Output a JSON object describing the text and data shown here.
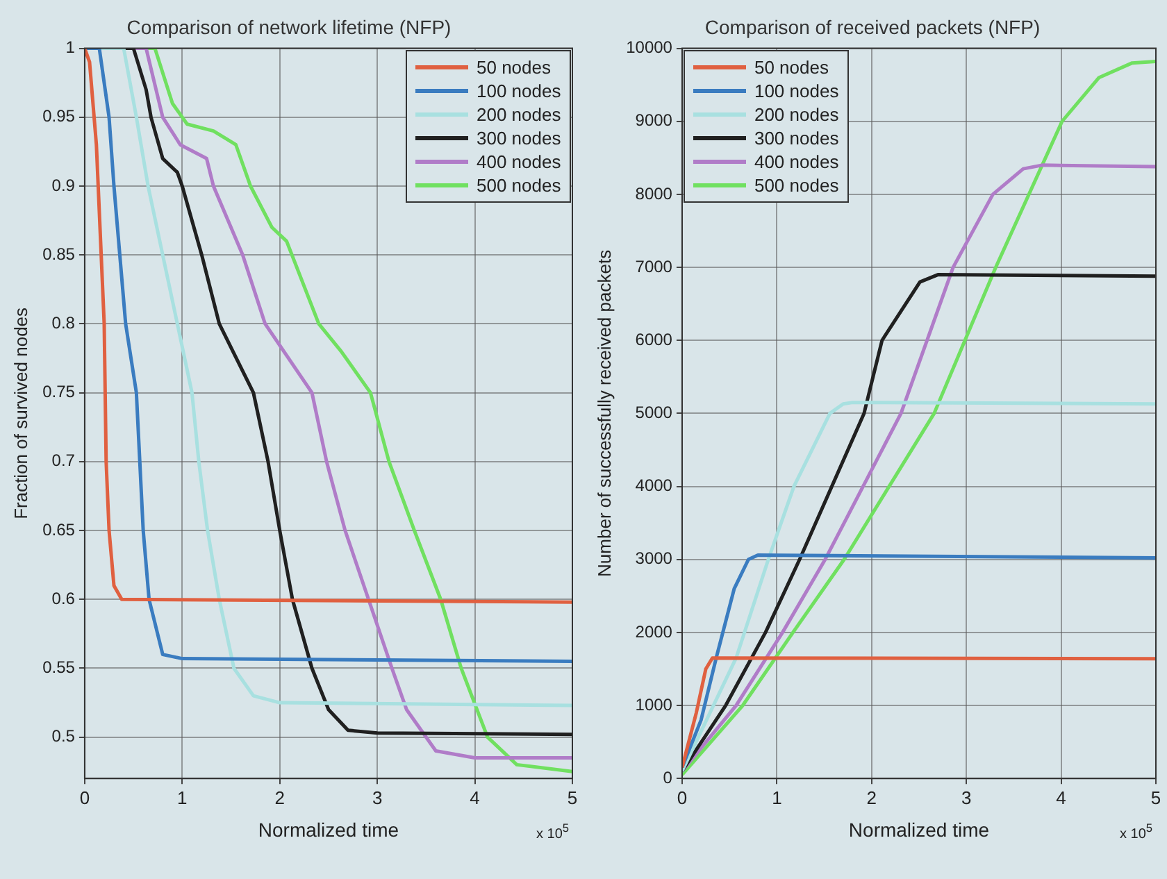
{
  "chart_data": [
    {
      "type": "line",
      "title": "Comparison of network lifetime (NFP)",
      "xlabel": "Normalized time",
      "ylabel": "Fraction of survived nodes",
      "annotations": [
        "x 10$^{5}$"
      ],
      "xlim": [
        0,
        5
      ],
      "xticks": [
        0,
        1,
        2,
        3,
        4,
        5
      ],
      "ylim": [
        0.47,
        1
      ],
      "yticks": [
        0.5,
        0.55,
        0.6,
        0.65,
        0.7,
        0.75,
        0.8,
        0.85,
        0.9,
        0.95,
        1
      ],
      "grid": true,
      "legend": "top right",
      "line_style": "solid",
      "marker": "none",
      "series": [
        {
          "name": "50 nodes",
          "color": "#e06040",
          "x": [
            0,
            0.05,
            0.12,
            0.2,
            0.22,
            0.25,
            0.3,
            0.38,
            5
          ],
          "values": [
            1,
            0.99,
            0.93,
            0.8,
            0.7,
            0.65,
            0.61,
            0.6,
            0.598
          ]
        },
        {
          "name": "100 nodes",
          "color": "#3a7cc0",
          "x": [
            0,
            0.15,
            0.25,
            0.3,
            0.42,
            0.53,
            0.6,
            0.66,
            0.8,
            1.0,
            5
          ],
          "values": [
            1,
            1,
            0.95,
            0.9,
            0.8,
            0.75,
            0.65,
            0.6,
            0.56,
            0.557,
            0.555
          ]
        },
        {
          "name": "200 nodes",
          "color": "#a8e0e0",
          "x": [
            0,
            0.4,
            0.53,
            0.65,
            0.8,
            0.95,
            1.1,
            1.17,
            1.26,
            1.38,
            1.53,
            1.73,
            2.0,
            5
          ],
          "values": [
            1,
            1,
            0.95,
            0.9,
            0.85,
            0.8,
            0.75,
            0.7,
            0.65,
            0.6,
            0.55,
            0.53,
            0.525,
            0.523
          ]
        },
        {
          "name": "300 nodes",
          "color": "#202020",
          "x": [
            0,
            0.5,
            0.63,
            0.68,
            0.8,
            0.95,
            1.0,
            1.2,
            1.38,
            1.73,
            1.88,
            2.0,
            2.13,
            2.33,
            2.5,
            2.7,
            3.0,
            5
          ],
          "values": [
            1,
            1,
            0.97,
            0.95,
            0.92,
            0.91,
            0.9,
            0.85,
            0.8,
            0.75,
            0.7,
            0.65,
            0.6,
            0.55,
            0.52,
            0.505,
            0.503,
            0.502
          ]
        },
        {
          "name": "400 nodes",
          "color": "#b07cc8",
          "x": [
            0,
            0.63,
            0.8,
            0.98,
            1.25,
            1.32,
            1.62,
            1.85,
            2.33,
            2.48,
            2.67,
            2.91,
            3.15,
            3.3,
            3.6,
            4.0,
            5
          ],
          "values": [
            1,
            1,
            0.95,
            0.93,
            0.92,
            0.9,
            0.85,
            0.8,
            0.75,
            0.7,
            0.65,
            0.6,
            0.55,
            0.52,
            0.49,
            0.485,
            0.485
          ]
        },
        {
          "name": "500 nodes",
          "color": "#70e060",
          "x": [
            0,
            0.72,
            0.9,
            1.05,
            1.32,
            1.55,
            1.7,
            1.92,
            2.07,
            2.4,
            2.63,
            2.93,
            3.12,
            3.38,
            3.65,
            3.86,
            4.13,
            4.43,
            5
          ],
          "values": [
            1,
            1,
            0.96,
            0.945,
            0.94,
            0.93,
            0.9,
            0.87,
            0.86,
            0.8,
            0.78,
            0.75,
            0.7,
            0.65,
            0.6,
            0.55,
            0.5,
            0.48,
            0.475
          ]
        }
      ]
    },
    {
      "type": "line",
      "title": "Comparison of received packets (NFP)",
      "xlabel": "Normalized time",
      "ylabel": "Number of successfully received packets",
      "annotations": [
        "x 10$^{5}$"
      ],
      "xlim": [
        0,
        5
      ],
      "xticks": [
        0,
        1,
        2,
        3,
        4,
        5
      ],
      "ylim": [
        0,
        10000
      ],
      "yticks": [
        0,
        1000,
        2000,
        3000,
        4000,
        5000,
        6000,
        7000,
        8000,
        9000,
        10000
      ],
      "grid": true,
      "legend": "top left",
      "line_style": "solid",
      "marker": "none",
      "series": [
        {
          "name": "50 nodes",
          "color": "#e06040",
          "x": [
            0,
            0.15,
            0.25,
            0.32,
            5
          ],
          "values": [
            150,
            900,
            1500,
            1650,
            1640
          ]
        },
        {
          "name": "100 nodes",
          "color": "#3a7cc0",
          "x": [
            0,
            0.2,
            0.36,
            0.55,
            0.7,
            0.8,
            5
          ],
          "values": [
            150,
            800,
            1650,
            2600,
            3000,
            3060,
            3020
          ]
        },
        {
          "name": "200 nodes",
          "color": "#a8e0e0",
          "x": [
            0,
            0.57,
            0.91,
            1.18,
            1.56,
            1.7,
            1.8,
            5
          ],
          "values": [
            100,
            1650,
            3000,
            4000,
            5000,
            5130,
            5150,
            5130
          ]
        },
        {
          "name": "300 nodes",
          "color": "#202020",
          "x": [
            0,
            0.46,
            0.88,
            1.24,
            1.92,
            2.11,
            2.51,
            2.7,
            5
          ],
          "values": [
            100,
            1000,
            2000,
            3000,
            5000,
            6000,
            6800,
            6900,
            6880
          ]
        },
        {
          "name": "400 nodes",
          "color": "#b07cc8",
          "x": [
            0,
            0.57,
            1.06,
            1.51,
            2.31,
            2.86,
            3.28,
            3.6,
            3.8,
            5
          ],
          "values": [
            100,
            1000,
            2000,
            3000,
            5000,
            7000,
            8000,
            8350,
            8400,
            8380
          ]
        },
        {
          "name": "500 nodes",
          "color": "#70e060",
          "x": [
            0,
            0.64,
            1.17,
            1.71,
            2.66,
            3.31,
            4.01,
            4.4,
            4.75,
            5
          ],
          "values": [
            50,
            1000,
            2000,
            3000,
            5000,
            7000,
            9000,
            9600,
            9800,
            9820
          ]
        }
      ]
    }
  ]
}
